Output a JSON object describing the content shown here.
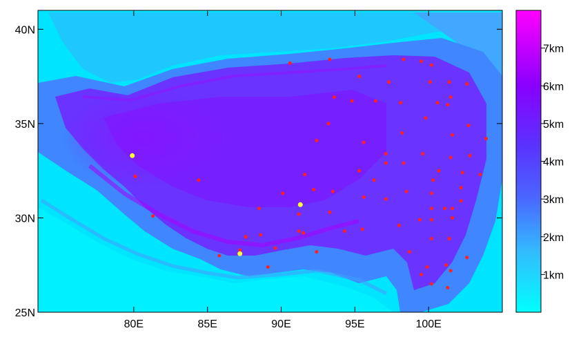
{
  "map": {
    "lon_range": [
      73.5,
      105
    ],
    "lat_range": [
      25,
      41
    ],
    "x_ticks": [
      {
        "lon": 80,
        "label": "80E"
      },
      {
        "lon": 85,
        "label": "85E"
      },
      {
        "lon": 90,
        "label": "90E"
      },
      {
        "lon": 95,
        "label": "95E"
      },
      {
        "lon": 100,
        "label": "100E"
      }
    ],
    "y_ticks": [
      {
        "lat": 25,
        "label": "25N"
      },
      {
        "lat": 30,
        "label": "30N"
      },
      {
        "lat": 35,
        "label": "35N"
      },
      {
        "lat": 40,
        "label": "40N"
      }
    ],
    "colors": {
      "low": "#00ffff",
      "mid_low": "#55aaff",
      "mid": "#6633ff",
      "high": "#aa00ff",
      "top": "#ff00ff",
      "station_red": "#ff2020",
      "station_yellow": "#ffff33"
    }
  },
  "colorbar": {
    "range_km": [
      0,
      8
    ],
    "ticks": [
      {
        "value": 1,
        "label": "1km"
      },
      {
        "value": 2,
        "label": "2km"
      },
      {
        "value": 3,
        "label": "3km"
      },
      {
        "value": 4,
        "label": "4km"
      },
      {
        "value": 5,
        "label": "5km"
      },
      {
        "value": 6,
        "label": "6km"
      },
      {
        "value": 7,
        "label": "7km"
      }
    ]
  },
  "stations": {
    "red": [
      [
        90.6,
        38.2
      ],
      [
        93.3,
        38.4
      ],
      [
        95.3,
        37.5
      ],
      [
        97.3,
        37.2
      ],
      [
        98.3,
        38.4
      ],
      [
        99.5,
        38.3
      ],
      [
        100.2,
        38.1
      ],
      [
        100.1,
        37.2
      ],
      [
        101.4,
        37.2
      ],
      [
        102.6,
        37.1
      ],
      [
        93.6,
        36.4
      ],
      [
        94.8,
        36.2
      ],
      [
        96.4,
        36.2
      ],
      [
        98.1,
        36.1
      ],
      [
        100.6,
        36.1
      ],
      [
        101.3,
        36.0
      ],
      [
        101.5,
        36.4
      ],
      [
        93.2,
        35.0
      ],
      [
        99.8,
        35.3
      ],
      [
        102.7,
        34.9
      ],
      [
        98.2,
        34.5
      ],
      [
        101.6,
        34.4
      ],
      [
        103.9,
        34.2
      ],
      [
        92.4,
        34.1
      ],
      [
        95.6,
        34.0
      ],
      [
        97.1,
        33.4
      ],
      [
        99.6,
        33.4
      ],
      [
        101.5,
        33.2
      ],
      [
        102.8,
        33.3
      ],
      [
        97.1,
        32.9
      ],
      [
        98.3,
        32.9
      ],
      [
        100.7,
        32.5
      ],
      [
        95.3,
        32.5
      ],
      [
        102.3,
        32.4
      ],
      [
        103.5,
        32.3
      ],
      [
        91.6,
        32.3
      ],
      [
        80.1,
        32.2
      ],
      [
        84.4,
        32.0
      ],
      [
        96.3,
        32.0
      ],
      [
        100.3,
        32.0
      ],
      [
        102.2,
        31.6
      ],
      [
        92.2,
        31.5
      ],
      [
        93.5,
        31.4
      ],
      [
        98.5,
        31.4
      ],
      [
        90.1,
        31.3
      ],
      [
        100.2,
        31.3
      ],
      [
        95.6,
        31.1
      ],
      [
        97.1,
        31.0
      ],
      [
        102.2,
        30.9
      ],
      [
        88.5,
        30.5
      ],
      [
        100.2,
        30.5
      ],
      [
        101.1,
        30.5
      ],
      [
        101.6,
        30.5
      ],
      [
        81.3,
        30.1
      ],
      [
        91.2,
        30.2
      ],
      [
        93.3,
        30.3
      ],
      [
        99.4,
        29.9
      ],
      [
        100.2,
        29.9
      ],
      [
        101.6,
        30.0
      ],
      [
        98.0,
        29.6
      ],
      [
        95.5,
        29.4
      ],
      [
        94.3,
        29.3
      ],
      [
        91.5,
        29.2
      ],
      [
        91.2,
        29.3
      ],
      [
        88.6,
        29.1
      ],
      [
        87.6,
        29.0
      ],
      [
        100.2,
        28.9
      ],
      [
        101.4,
        28.9
      ],
      [
        89.6,
        28.4
      ],
      [
        87.2,
        28.3
      ],
      [
        92.4,
        28.2
      ],
      [
        98.7,
        28.2
      ],
      [
        85.8,
        28.0
      ],
      [
        102.6,
        27.9
      ],
      [
        99.9,
        27.4
      ],
      [
        89.1,
        27.4
      ],
      [
        101.2,
        27.5
      ],
      [
        101.5,
        27.2
      ],
      [
        99.5,
        27.0
      ],
      [
        100.2,
        26.5
      ],
      [
        101.3,
        26.3
      ]
    ],
    "yellow": [
      [
        79.9,
        33.3
      ],
      [
        91.3,
        30.7
      ],
      [
        87.2,
        28.1
      ]
    ]
  }
}
